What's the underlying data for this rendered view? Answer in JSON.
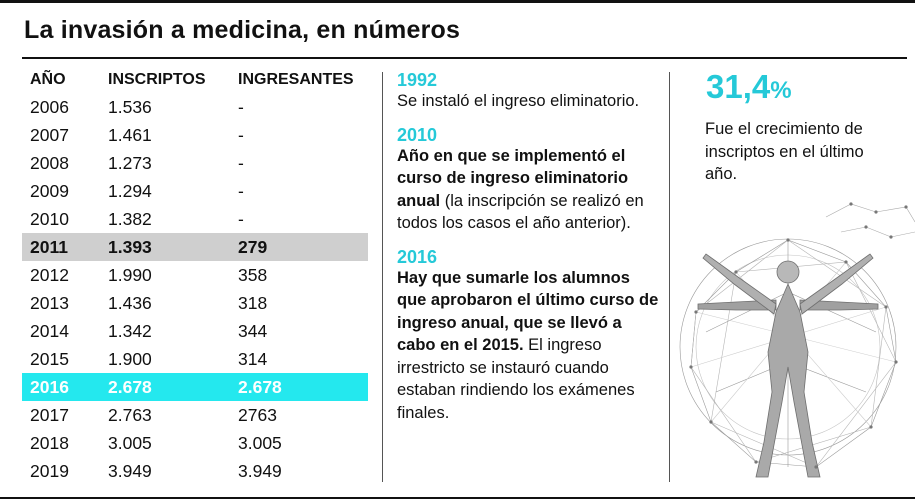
{
  "title": "La invasión a medicina, en números",
  "table": {
    "headers": [
      "AÑO",
      "INSCRIPTOS",
      "INGRESANTES"
    ],
    "rows": [
      {
        "anio": "2006",
        "inscriptos": "1.536",
        "ingresantes": "-"
      },
      {
        "anio": "2007",
        "inscriptos": "1.461",
        "ingresantes": "-"
      },
      {
        "anio": "2008",
        "inscriptos": "1.273",
        "ingresantes": "-"
      },
      {
        "anio": "2009",
        "inscriptos": "1.294",
        "ingresantes": "-"
      },
      {
        "anio": "2010",
        "inscriptos": "1.382",
        "ingresantes": "-"
      },
      {
        "anio": "2011",
        "inscriptos": "1.393",
        "ingresantes": "279"
      },
      {
        "anio": "2012",
        "inscriptos": "1.990",
        "ingresantes": "358"
      },
      {
        "anio": "2013",
        "inscriptos": "1.436",
        "ingresantes": "318"
      },
      {
        "anio": "2014",
        "inscriptos": "1.342",
        "ingresantes": "344"
      },
      {
        "anio": "2015",
        "inscriptos": "1.900",
        "ingresantes": "314"
      },
      {
        "anio": "2016",
        "inscriptos": "2.678",
        "ingresantes": "2.678"
      },
      {
        "anio": "2017",
        "inscriptos": "2.763",
        "ingresantes": "2763"
      },
      {
        "anio": "2018",
        "inscriptos": "3.005",
        "ingresantes": "3.005"
      },
      {
        "anio": "2019",
        "inscriptos": "3.949",
        "ingresantes": "3.949"
      }
    ],
    "highlight_colors": {
      "grey": "#cfcfcf",
      "cyan": "#24e8ee"
    }
  },
  "timeline": {
    "y1992": {
      "year": "1992",
      "text": "Se instaló el ingreso eliminatorio."
    },
    "y2010": {
      "year": "2010",
      "bold": "Año en que se implementó el curso de ingreso eliminatorio anual",
      "text": " (la inscripción se realizó en todos los casos el año anterior)."
    },
    "y2016": {
      "year": "2016",
      "bold": "Hay que sumarle los alumnos que aprobaron el último curso de ingreso anual, que se llevó a cabo en el 2015.",
      "text": " El ingreso irrestricto se instauró cuando estaban rindiendo los exámenes finales."
    }
  },
  "stat": {
    "value": "31,4",
    "unit": "%",
    "description": "Fue el crecimiento de inscriptos en el último año."
  },
  "accent_color": "#25c9d8",
  "illustration": "vitruvian-man-network-illustration"
}
